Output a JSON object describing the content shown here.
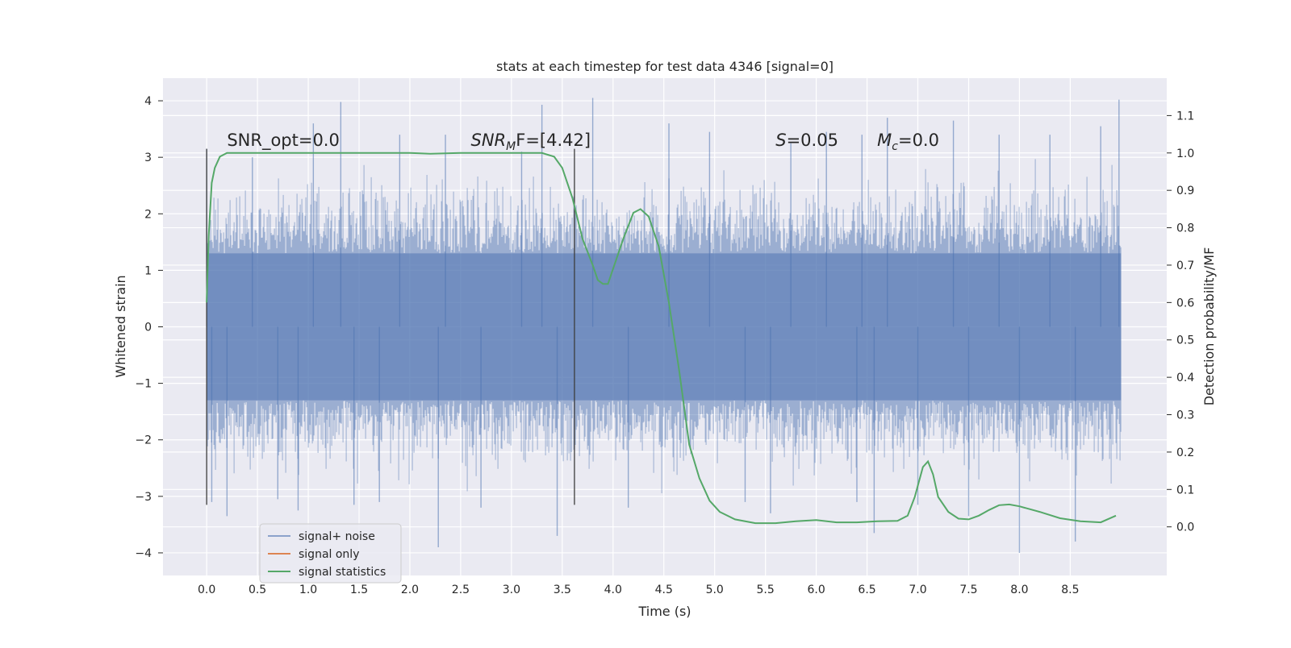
{
  "chart_data": {
    "type": "line",
    "title": "stats at each timestep for test data 4346 [signal=0]",
    "xlabel": "Time (s)",
    "ylabel": "Whitened strain",
    "y2label": "Detection probability/MF",
    "xlim": [
      -0.43,
      9.45
    ],
    "ylim": [
      -4.4,
      4.4
    ],
    "y2lim": [
      -0.13,
      1.2
    ],
    "x_ticks": [
      "0.0",
      "0.5",
      "1.0",
      "1.5",
      "2.0",
      "2.5",
      "3.0",
      "3.5",
      "4.0",
      "4.5",
      "5.0",
      "5.5",
      "6.0",
      "6.5",
      "7.0",
      "7.5",
      "8.0",
      "8.5"
    ],
    "y_ticks": [
      "−4",
      "−3",
      "−2",
      "−1",
      "0",
      "1",
      "2",
      "3",
      "4"
    ],
    "y2_ticks": [
      "0.0",
      "0.1",
      "0.2",
      "0.3",
      "0.4",
      "0.5",
      "0.6",
      "0.7",
      "0.8",
      "0.9",
      "1.0",
      "1.1"
    ],
    "grid": true,
    "legend_position": "lower-left",
    "annotations": [
      {
        "x": 0.2,
        "y": 3.2,
        "text": "SNR_opt=0.0",
        "italic_part": ""
      },
      {
        "x": 2.6,
        "y": 3.2,
        "text": "SNR",
        "sub": "M",
        "after": "F=[4.42]",
        "italic_part": "SNR_M"
      },
      {
        "x": 5.6,
        "y": 3.2,
        "text": "S",
        "after": "=0.05",
        "italic_part": "S"
      },
      {
        "x": 6.6,
        "y": 3.2,
        "text": "M",
        "sub": "c",
        "after": "=0.0",
        "italic_part": "M_c"
      }
    ],
    "vlines": [
      {
        "x": 0.0,
        "ymin": -3.15,
        "ymax": 3.15
      },
      {
        "x": 3.62,
        "ymin": -3.15,
        "ymax": 3.15
      }
    ],
    "series": [
      {
        "name": "signal+ noise",
        "color": "#4c72b0",
        "axis": "left",
        "kind": "noise-band",
        "x_range": [
          0.0,
          9.0
        ],
        "dense_band": [
          -1.3,
          1.3
        ],
        "spikes": [
          [
            0.0,
            3.15
          ],
          [
            0.05,
            -3.1
          ],
          [
            0.2,
            -3.35
          ],
          [
            0.45,
            3.0
          ],
          [
            0.7,
            -3.05
          ],
          [
            0.9,
            -3.25
          ],
          [
            1.05,
            3.6
          ],
          [
            1.32,
            3.98
          ],
          [
            1.45,
            -3.15
          ],
          [
            1.7,
            -3.1
          ],
          [
            1.9,
            3.4
          ],
          [
            2.28,
            -3.9
          ],
          [
            2.35,
            3.4
          ],
          [
            2.7,
            -3.2
          ],
          [
            3.1,
            3.1
          ],
          [
            3.3,
            3.93
          ],
          [
            3.45,
            -3.7
          ],
          [
            3.8,
            4.05
          ],
          [
            4.15,
            -3.2
          ],
          [
            4.55,
            3.6
          ],
          [
            4.95,
            3.45
          ],
          [
            5.3,
            -3.1
          ],
          [
            5.55,
            -3.3
          ],
          [
            5.75,
            3.25
          ],
          [
            6.1,
            3.45
          ],
          [
            6.4,
            -3.1
          ],
          [
            6.45,
            3.4
          ],
          [
            6.57,
            -3.65
          ],
          [
            6.7,
            3.7
          ],
          [
            7.0,
            -3.15
          ],
          [
            7.35,
            3.65
          ],
          [
            7.5,
            -3.35
          ],
          [
            7.8,
            3.4
          ],
          [
            8.0,
            -4.0
          ],
          [
            8.3,
            3.4
          ],
          [
            8.55,
            -3.8
          ],
          [
            8.8,
            3.55
          ],
          [
            8.98,
            4.02
          ]
        ]
      },
      {
        "name": "signal only",
        "color": "#dd8452",
        "axis": "left",
        "kind": "line",
        "x": [],
        "values": []
      },
      {
        "name": "signal statistics",
        "color": "#55a868",
        "axis": "right",
        "kind": "line",
        "x": [
          0.0,
          0.02,
          0.05,
          0.08,
          0.13,
          0.2,
          0.4,
          0.8,
          1.2,
          1.6,
          2.0,
          2.2,
          2.5,
          3.0,
          3.3,
          3.42,
          3.5,
          3.6,
          3.7,
          3.8,
          3.85,
          3.9,
          3.95,
          4.0,
          4.1,
          4.2,
          4.27,
          4.35,
          4.45,
          4.55,
          4.65,
          4.75,
          4.85,
          4.95,
          5.05,
          5.2,
          5.4,
          5.6,
          5.8,
          6.0,
          6.2,
          6.4,
          6.6,
          6.8,
          6.9,
          6.97,
          7.05,
          7.1,
          7.15,
          7.2,
          7.3,
          7.4,
          7.5,
          7.6,
          7.7,
          7.8,
          7.9,
          8.0,
          8.2,
          8.4,
          8.6,
          8.8,
          8.95
        ],
        "values": [
          0.6,
          0.78,
          0.92,
          0.96,
          0.99,
          1.0,
          1.0,
          1.0,
          1.0,
          1.0,
          1.0,
          0.998,
          1.0,
          1.0,
          1.0,
          0.99,
          0.96,
          0.88,
          0.77,
          0.7,
          0.66,
          0.65,
          0.65,
          0.69,
          0.77,
          0.84,
          0.85,
          0.83,
          0.75,
          0.6,
          0.42,
          0.22,
          0.13,
          0.07,
          0.04,
          0.02,
          0.01,
          0.01,
          0.015,
          0.018,
          0.012,
          0.012,
          0.015,
          0.016,
          0.03,
          0.08,
          0.16,
          0.175,
          0.14,
          0.08,
          0.04,
          0.022,
          0.02,
          0.03,
          0.045,
          0.058,
          0.06,
          0.055,
          0.04,
          0.023,
          0.015,
          0.012,
          0.03
        ]
      }
    ]
  }
}
